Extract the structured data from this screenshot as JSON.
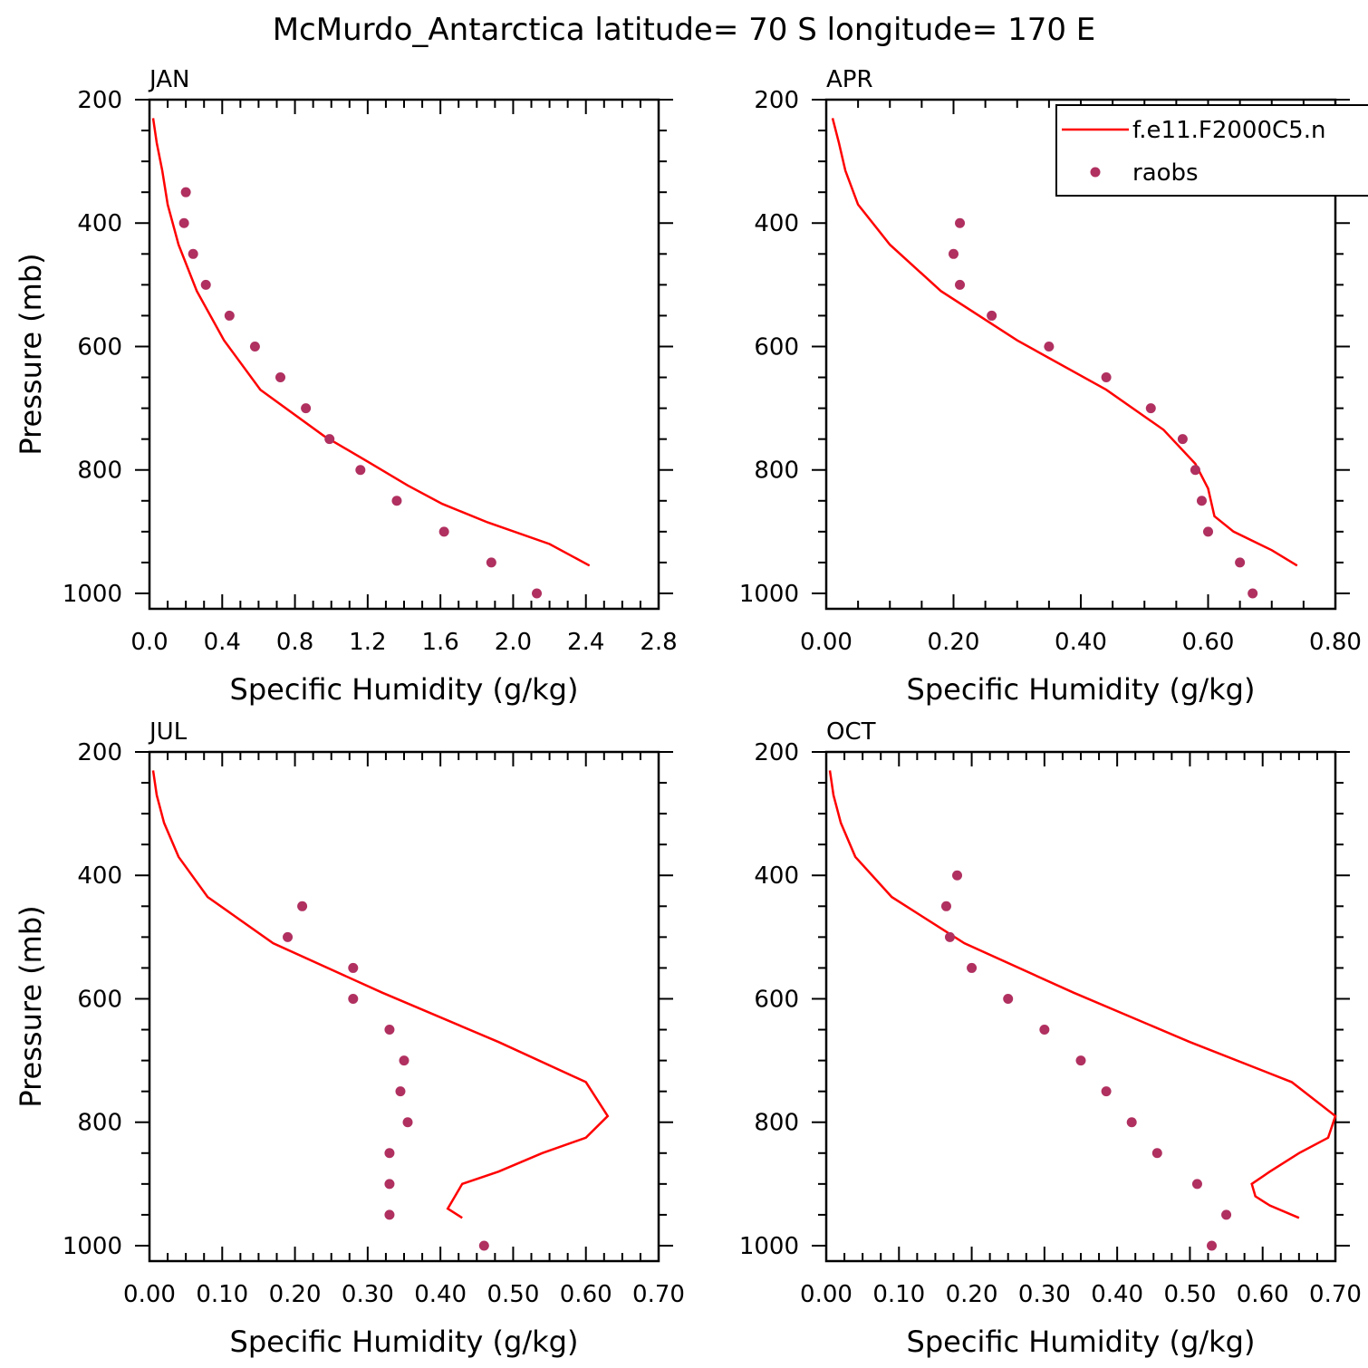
{
  "title": "McMurdo_Antarctica  latitude= 70 S longitude= 170 E",
  "legend": {
    "model_label": "f.e11.F2000C5.n",
    "obs_label": "raobs",
    "model_color": "#ff0000",
    "obs_color": "#b03060"
  },
  "chart_data": [
    {
      "type": "line",
      "panel": "JAN",
      "xlabel": "Specific Humidity (g/kg)",
      "ylabel": "Pressure (mb)",
      "xlim": [
        0,
        2.8
      ],
      "ylim": [
        200,
        1025
      ],
      "xticks": [
        "0.0",
        "0.4",
        "0.8",
        "1.2",
        "1.6",
        "2.0",
        "2.4",
        "2.8"
      ],
      "xtick_values": [
        0,
        0.4,
        0.8,
        1.2,
        1.6,
        2.0,
        2.4,
        2.8
      ],
      "yticks": [
        "200",
        "400",
        "600",
        "800",
        "1000"
      ],
      "show_legend": false,
      "model": {
        "name": "f.e11.F2000C5.n",
        "p": [
          230,
          270,
          315,
          370,
          435,
          510,
          590,
          670,
          745,
          790,
          825,
          855,
          885,
          920,
          955
        ],
        "q": [
          0.02,
          0.04,
          0.07,
          0.1,
          0.16,
          0.26,
          0.41,
          0.61,
          0.96,
          1.22,
          1.42,
          1.61,
          1.86,
          2.2,
          2.42
        ]
      },
      "obs": {
        "name": "raobs",
        "p": [
          350,
          400,
          450,
          500,
          550,
          600,
          650,
          700,
          750,
          800,
          850,
          900,
          950,
          1000
        ],
        "q": [
          0.2,
          0.19,
          0.24,
          0.31,
          0.44,
          0.58,
          0.72,
          0.86,
          0.99,
          1.16,
          1.36,
          1.62,
          1.88,
          2.13
        ]
      }
    },
    {
      "type": "line",
      "panel": "APR",
      "xlabel": "Specific Humidity (g/kg)",
      "ylabel": "",
      "xlim": [
        0,
        0.8
      ],
      "ylim": [
        200,
        1025
      ],
      "xticks": [
        "0.00",
        "0.20",
        "0.40",
        "0.60",
        "0.80"
      ],
      "xtick_values": [
        0,
        0.2,
        0.4,
        0.6,
        0.8
      ],
      "yticks": [
        "200",
        "400",
        "600",
        "800",
        "1000"
      ],
      "show_legend": true,
      "model": {
        "name": "f.e11.F2000C5.n",
        "p": [
          230,
          270,
          315,
          370,
          435,
          510,
          590,
          670,
          735,
          790,
          830,
          875,
          900,
          930,
          955
        ],
        "q": [
          0.01,
          0.02,
          0.03,
          0.05,
          0.1,
          0.18,
          0.3,
          0.44,
          0.53,
          0.58,
          0.6,
          0.61,
          0.64,
          0.7,
          0.74
        ]
      },
      "obs": {
        "name": "raobs",
        "p": [
          400,
          450,
          500,
          550,
          600,
          650,
          700,
          750,
          800,
          850,
          900,
          950,
          1000
        ],
        "q": [
          0.21,
          0.2,
          0.21,
          0.26,
          0.35,
          0.44,
          0.51,
          0.56,
          0.58,
          0.59,
          0.6,
          0.65,
          0.67
        ]
      }
    },
    {
      "type": "line",
      "panel": "JUL",
      "xlabel": "Specific Humidity (g/kg)",
      "ylabel": "Pressure (mb)",
      "xlim": [
        0,
        0.7
      ],
      "ylim": [
        200,
        1025
      ],
      "xticks": [
        "0.00",
        "0.10",
        "0.20",
        "0.30",
        "0.40",
        "0.50",
        "0.60",
        "0.70"
      ],
      "xtick_values": [
        0,
        0.1,
        0.2,
        0.3,
        0.4,
        0.5,
        0.6,
        0.7
      ],
      "yticks": [
        "200",
        "400",
        "600",
        "800",
        "1000"
      ],
      "show_legend": false,
      "model": {
        "name": "f.e11.F2000C5.n",
        "p": [
          230,
          270,
          315,
          370,
          435,
          510,
          590,
          670,
          735,
          790,
          825,
          850,
          880,
          900,
          920,
          940,
          955
        ],
        "q": [
          0.005,
          0.01,
          0.02,
          0.04,
          0.08,
          0.17,
          0.32,
          0.48,
          0.6,
          0.63,
          0.6,
          0.54,
          0.48,
          0.43,
          0.42,
          0.41,
          0.43
        ]
      },
      "obs": {
        "name": "raobs",
        "p": [
          450,
          500,
          550,
          600,
          650,
          700,
          750,
          800,
          850,
          900,
          950,
          1000
        ],
        "q": [
          0.21,
          0.19,
          0.28,
          0.28,
          0.33,
          0.35,
          0.345,
          0.355,
          0.33,
          0.33,
          0.33,
          0.46
        ]
      }
    },
    {
      "type": "line",
      "panel": "OCT",
      "xlabel": "Specific Humidity (g/kg)",
      "ylabel": "",
      "xlim": [
        0,
        0.7
      ],
      "ylim": [
        200,
        1025
      ],
      "xticks": [
        "0.00",
        "0.10",
        "0.20",
        "0.30",
        "0.40",
        "0.50",
        "0.60",
        "0.70"
      ],
      "xtick_values": [
        0,
        0.1,
        0.2,
        0.3,
        0.4,
        0.5,
        0.6,
        0.7
      ],
      "yticks": [
        "200",
        "400",
        "600",
        "800",
        "1000"
      ],
      "show_legend": false,
      "model": {
        "name": "f.e11.F2000C5.n",
        "p": [
          230,
          270,
          315,
          370,
          435,
          510,
          590,
          670,
          735,
          790,
          825,
          850,
          880,
          900,
          920,
          935,
          955
        ],
        "q": [
          0.005,
          0.01,
          0.02,
          0.04,
          0.09,
          0.19,
          0.34,
          0.5,
          0.64,
          0.7,
          0.69,
          0.65,
          0.61,
          0.585,
          0.59,
          0.61,
          0.65
        ]
      },
      "obs": {
        "name": "raobs",
        "p": [
          400,
          450,
          500,
          550,
          600,
          650,
          700,
          750,
          800,
          850,
          900,
          950,
          1000
        ],
        "q": [
          0.18,
          0.165,
          0.17,
          0.2,
          0.25,
          0.3,
          0.35,
          0.385,
          0.42,
          0.455,
          0.51,
          0.55,
          0.53
        ]
      }
    }
  ]
}
